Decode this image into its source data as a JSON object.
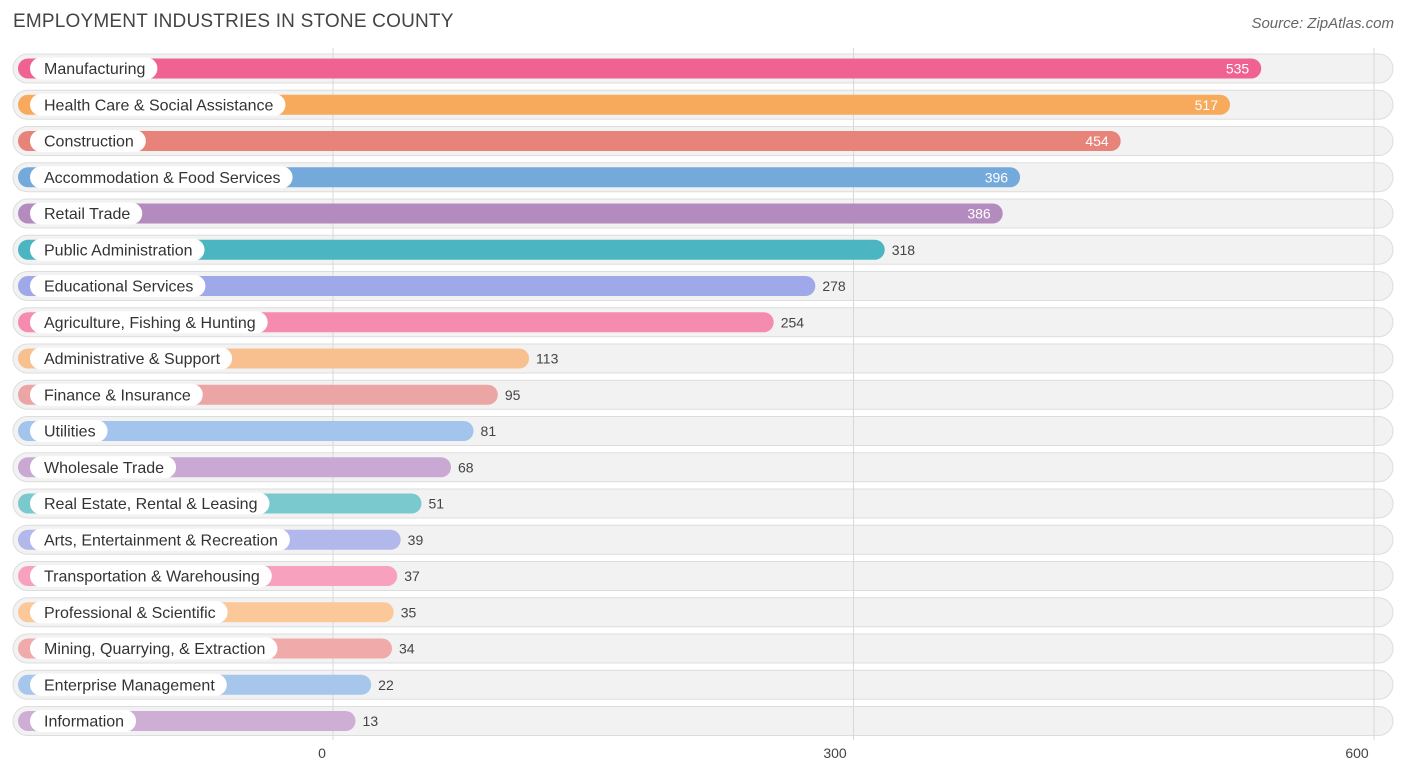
{
  "header": {
    "title": "EMPLOYMENT INDUSTRIES IN STONE COUNTY",
    "source": "Source: ZipAtlas.com"
  },
  "chart_data": {
    "type": "bar",
    "orientation": "horizontal",
    "title": "EMPLOYMENT INDUSTRIES IN STONE COUNTY",
    "xlabel": "",
    "ylabel": "",
    "xlim": [
      0,
      600
    ],
    "ticks": [
      0,
      300,
      600
    ],
    "grid": true,
    "categories": [
      "Manufacturing",
      "Health Care & Social Assistance",
      "Construction",
      "Accommodation & Food Services",
      "Retail Trade",
      "Public Administration",
      "Educational Services",
      "Agriculture, Fishing & Hunting",
      "Administrative & Support",
      "Finance & Insurance",
      "Utilities",
      "Wholesale Trade",
      "Real Estate, Rental & Leasing",
      "Arts, Entertainment & Recreation",
      "Transportation & Warehousing",
      "Professional & Scientific",
      "Mining, Quarrying, & Extraction",
      "Enterprise Management",
      "Information"
    ],
    "values": [
      535,
      517,
      454,
      396,
      386,
      318,
      278,
      254,
      113,
      95,
      81,
      68,
      51,
      39,
      37,
      35,
      34,
      22,
      13
    ],
    "colors": [
      "#f06292",
      "#f7a95c",
      "#e8837a",
      "#74a9dc",
      "#b48bbf",
      "#4bb5c1",
      "#9fa8e8",
      "#f68bb0",
      "#f9c08f",
      "#eba5a5",
      "#a3c4ec",
      "#c9a8d3",
      "#79c9cf",
      "#b2b8ec",
      "#f7a1bf",
      "#fbc89a",
      "#f0aaaa",
      "#a6c6ec",
      "#cfaed6"
    ]
  }
}
